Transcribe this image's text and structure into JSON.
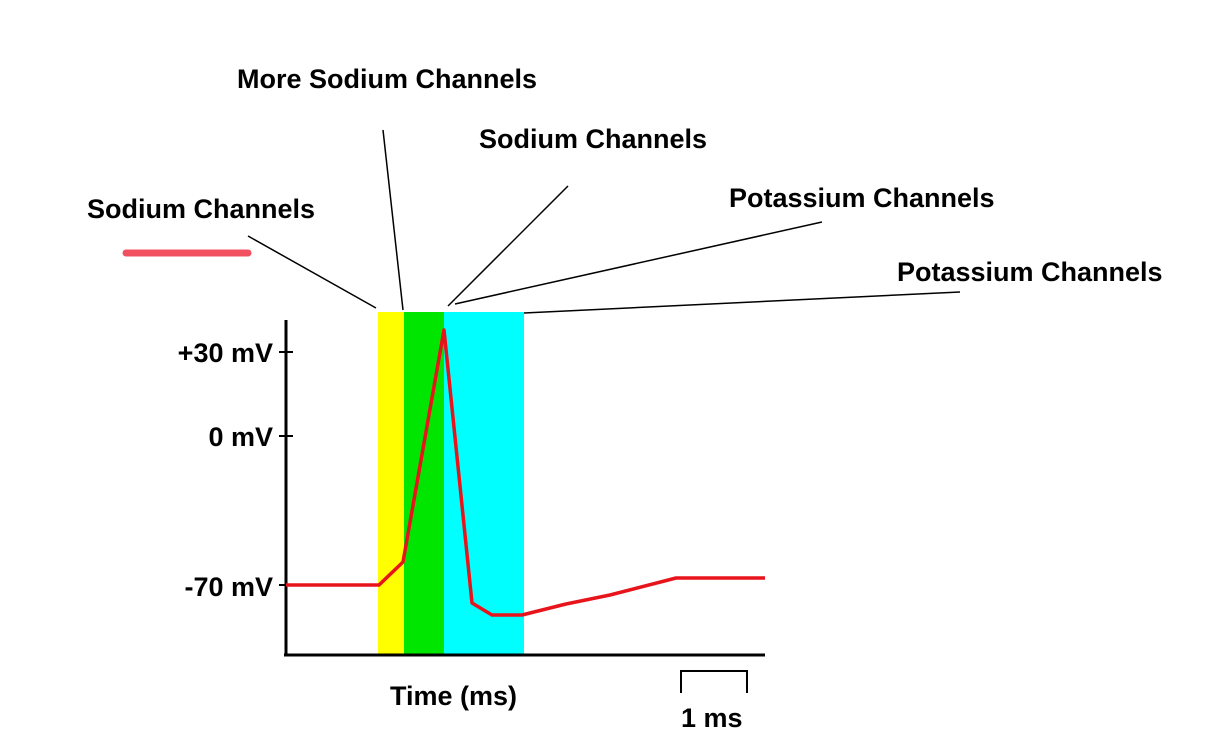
{
  "diagram": {
    "callouts": {
      "sodium_open": "Sodium Channels",
      "more_sodium": "More Sodium Channels",
      "sodium_close": "Sodium Channels",
      "potassium_open": "Potassium Channels",
      "potassium_close": "Potassium Channels"
    },
    "y_axis": {
      "ticks": [
        "+30 mV",
        "0 mV",
        "-70 mV"
      ]
    },
    "x_axis": {
      "label": "Time (ms)",
      "scale_bar": "1 ms"
    },
    "colors": {
      "trace": "#e8141b",
      "phase_yellow": "#ffff00",
      "phase_green": "#00e600",
      "phase_cyan": "#00ffff",
      "underline": "#f05060"
    }
  }
}
